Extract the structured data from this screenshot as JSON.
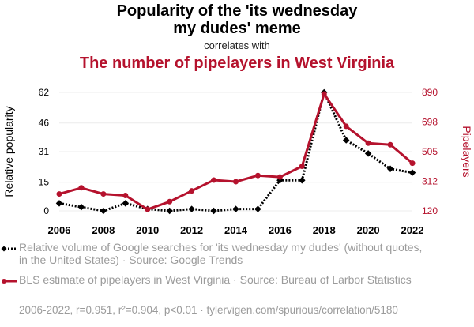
{
  "header": {
    "title": "Popularity of the 'its wednesday my dudes' meme",
    "correlates_with": "correlates with",
    "subtitle": "The number of pipelayers in West Virginia"
  },
  "legend": [
    {
      "text": "Relative volume of Google searches for 'its wednesday my dudes' (without quotes, in the United States) · Source: Google Trends",
      "color": "#000000",
      "style": "dotted"
    },
    {
      "text": "BLS estimate of pipelayers in West Virginia · Source: Bureau of Larbor Statistics",
      "color": "#b5122d",
      "style": "solid"
    }
  ],
  "footer": "2006-2022, r=0.951, r²=0.904, p<0.01 · tylervigen.com/spurious/correlation/5180",
  "chart_data": {
    "type": "line",
    "x": [
      2006,
      2007,
      2008,
      2009,
      2010,
      2011,
      2012,
      2013,
      2014,
      2015,
      2016,
      2017,
      2018,
      2019,
      2020,
      2021,
      2022
    ],
    "x_ticks": [
      "2006",
      "2008",
      "2010",
      "2012",
      "2014",
      "2016",
      "2018",
      "2020",
      "2022"
    ],
    "y_left": {
      "label": "Relative popularity",
      "ticks": [
        "0",
        "15",
        "31",
        "46",
        "62"
      ],
      "range": [
        0,
        62
      ]
    },
    "y_right": {
      "label": "Pipelayers",
      "ticks": [
        "120",
        "312",
        "505",
        "698",
        "890"
      ],
      "range": [
        120,
        890
      ]
    },
    "series": [
      {
        "name": "Relative volume of Google searches for 'its wednesday my dudes'",
        "axis": "left",
        "color": "#000000",
        "style": "dotted",
        "marker": "diamond",
        "values": [
          4,
          2,
          0,
          4,
          1,
          0,
          1,
          0,
          1,
          1,
          16,
          16,
          62,
          37,
          30,
          22,
          20
        ]
      },
      {
        "name": "BLS estimate of pipelayers in West Virginia",
        "axis": "right",
        "color": "#b5122d",
        "style": "solid",
        "marker": "circle",
        "values": [
          230,
          270,
          230,
          220,
          130,
          180,
          250,
          320,
          310,
          350,
          340,
          410,
          880,
          670,
          560,
          550,
          430
        ]
      }
    ]
  }
}
